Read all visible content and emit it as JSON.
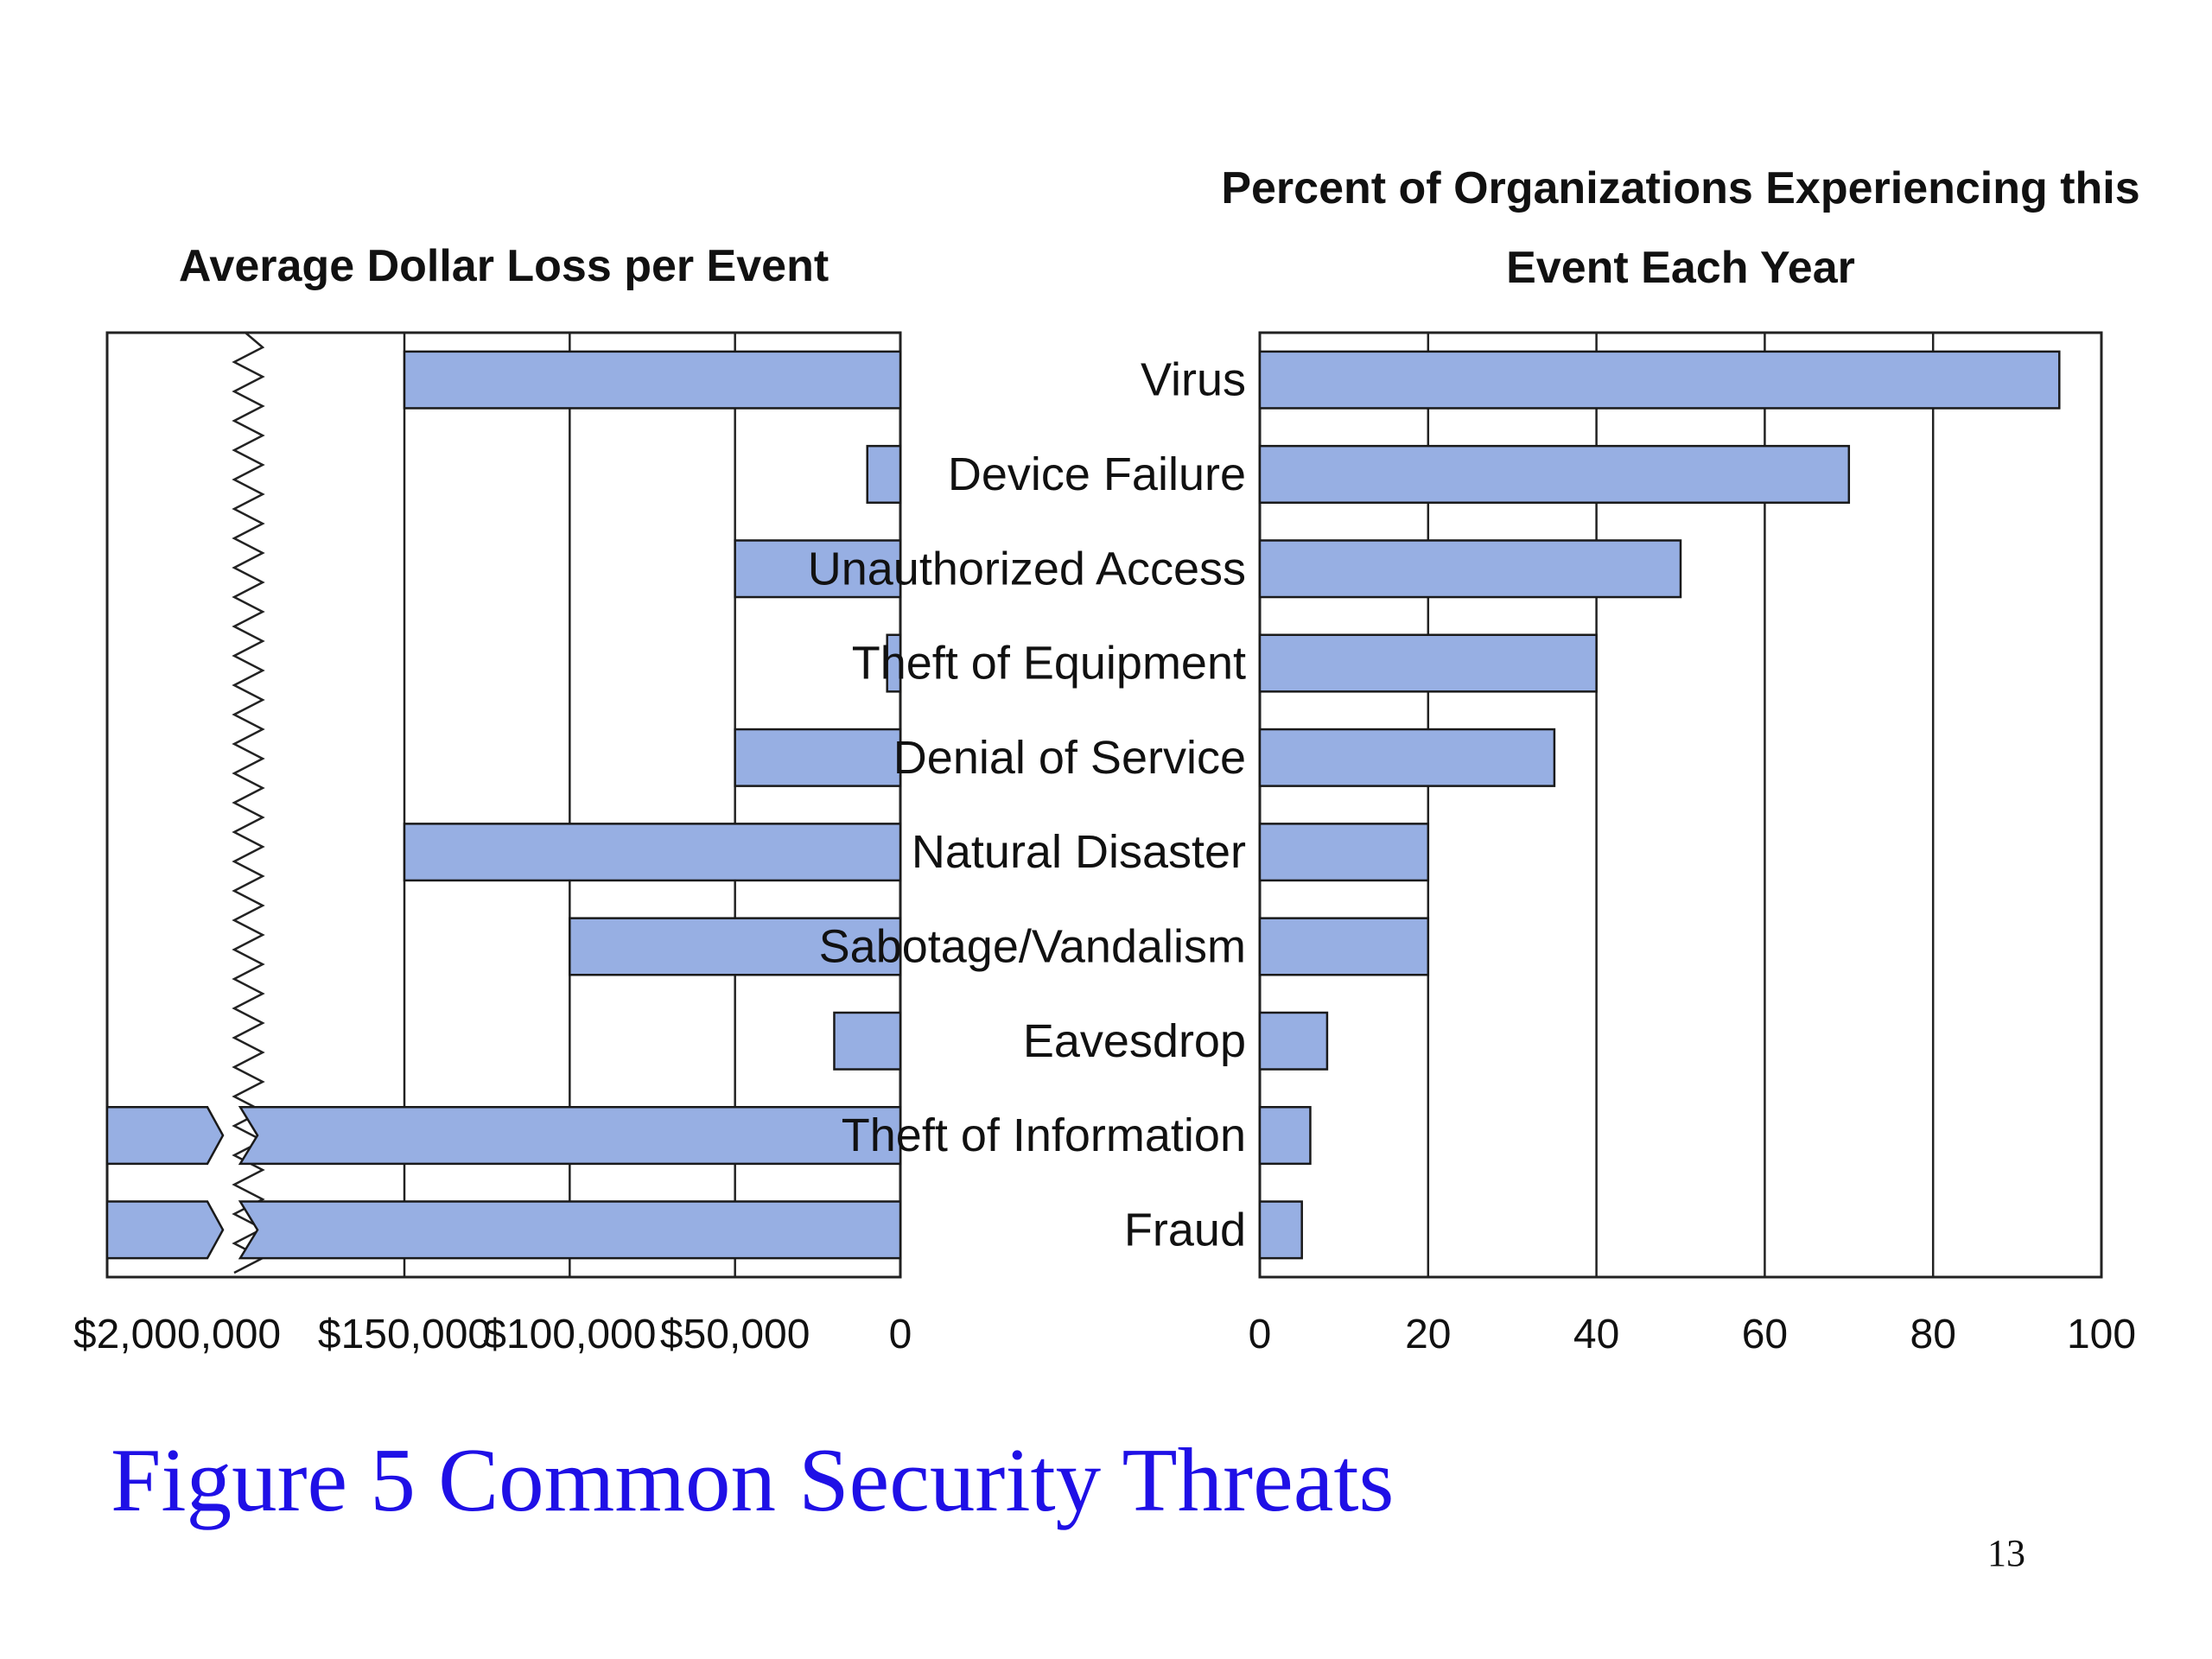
{
  "slide": {
    "title": "Figure 5 Common Security Threats",
    "page_number": "13"
  },
  "colors": {
    "bar_fill": "#97afe3",
    "bar_stroke": "#1a1a1a",
    "grid": "#222222",
    "title_blue": "#1f10e6"
  },
  "chart_data": [
    {
      "type": "bar",
      "orientation": "horizontal",
      "direction": "right-to-left",
      "title": "Average Dollar Loss per Event",
      "axis_break": "between $2,000,000 and $150,000",
      "categories": [
        "Virus",
        "Device Failure",
        "Unauthorized Access",
        "Theft of Equipment",
        "Denial of Service",
        "Natural Disaster",
        "Sabotage/Vandalism",
        "Eavesdrop",
        "Theft of Information",
        "Fraud"
      ],
      "values": [
        150000,
        10000,
        50000,
        4000,
        50000,
        150000,
        100000,
        20000,
        2000000,
        2000000
      ],
      "xlim": [
        0,
        2000000
      ],
      "ticks": [
        {
          "value": 0,
          "label": "0"
        },
        {
          "value": 50000,
          "label": "$50,000"
        },
        {
          "value": 100000,
          "label": "$100,000"
        },
        {
          "value": 150000,
          "label": "$150,000"
        },
        {
          "value": 2000000,
          "label": "$2,000,000"
        }
      ],
      "grid": true
    },
    {
      "type": "bar",
      "orientation": "horizontal",
      "title": "Percent of Organizations Experiencing this Event Each Year",
      "title_lines": [
        "Percent of Organizations Experiencing this",
        "Event Each Year"
      ],
      "categories": [
        "Virus",
        "Device Failure",
        "Unauthorized Access",
        "Theft of Equipment",
        "Denial of Service",
        "Natural Disaster",
        "Sabotage/Vandalism",
        "Eavesdrop",
        "Theft of Information",
        "Fraud"
      ],
      "values": [
        95,
        70,
        50,
        40,
        35,
        20,
        20,
        8,
        6,
        5
      ],
      "xlim": [
        0,
        100
      ],
      "ticks": [
        0,
        20,
        40,
        60,
        80,
        100
      ],
      "grid": true
    }
  ]
}
